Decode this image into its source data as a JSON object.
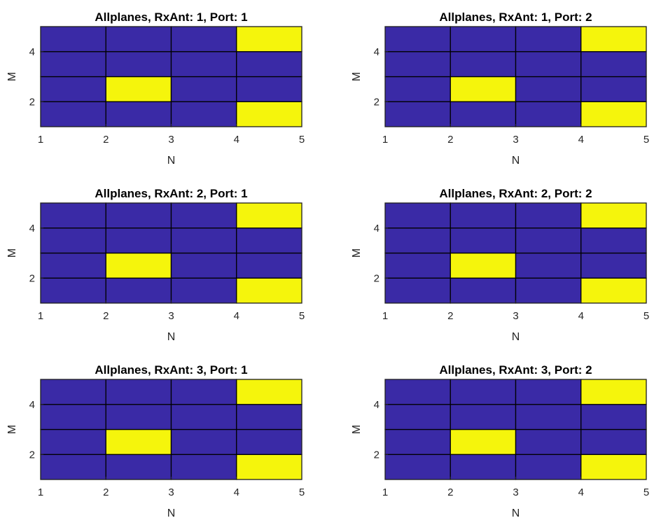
{
  "colors": {
    "low": "#3a2aa6",
    "high": "#f5f50c",
    "grid": "#000000",
    "axis": "#262626"
  },
  "chart_data": [
    {
      "type": "heatmap",
      "title": "Allplanes, RxAnt: 1, Port: 1",
      "xlabel": "N",
      "ylabel": "M",
      "xlim": [
        1,
        5
      ],
      "ylim": [
        1,
        5
      ],
      "xticks": [
        "1",
        "2",
        "3",
        "4",
        "5"
      ],
      "yticks": [
        "2",
        "4"
      ],
      "cells_note": "rows listed from M=1-2 (bottom) to M=4-5 (top); columns N=1-2 .. 4-5",
      "cells": [
        [
          0,
          0,
          0,
          1
        ],
        [
          0,
          1,
          0,
          0
        ],
        [
          0,
          0,
          0,
          0
        ],
        [
          0,
          0,
          0,
          1
        ]
      ]
    },
    {
      "type": "heatmap",
      "title": "Allplanes, RxAnt: 1, Port: 2",
      "xlabel": "N",
      "ylabel": "M",
      "xlim": [
        1,
        5
      ],
      "ylim": [
        1,
        5
      ],
      "xticks": [
        "1",
        "2",
        "3",
        "4",
        "5"
      ],
      "yticks": [
        "2",
        "4"
      ],
      "cells": [
        [
          0,
          0,
          0,
          1
        ],
        [
          0,
          1,
          0,
          0
        ],
        [
          0,
          0,
          0,
          0
        ],
        [
          0,
          0,
          0,
          1
        ]
      ]
    },
    {
      "type": "heatmap",
      "title": "Allplanes, RxAnt: 2, Port: 1",
      "xlabel": "N",
      "ylabel": "M",
      "xlim": [
        1,
        5
      ],
      "ylim": [
        1,
        5
      ],
      "xticks": [
        "1",
        "2",
        "3",
        "4",
        "5"
      ],
      "yticks": [
        "2",
        "4"
      ],
      "cells": [
        [
          0,
          0,
          0,
          1
        ],
        [
          0,
          1,
          0,
          0
        ],
        [
          0,
          0,
          0,
          0
        ],
        [
          0,
          0,
          0,
          1
        ]
      ]
    },
    {
      "type": "heatmap",
      "title": "Allplanes, RxAnt: 2, Port: 2",
      "xlabel": "N",
      "ylabel": "M",
      "xlim": [
        1,
        5
      ],
      "ylim": [
        1,
        5
      ],
      "xticks": [
        "1",
        "2",
        "3",
        "4",
        "5"
      ],
      "yticks": [
        "2",
        "4"
      ],
      "cells": [
        [
          0,
          0,
          0,
          1
        ],
        [
          0,
          1,
          0,
          0
        ],
        [
          0,
          0,
          0,
          0
        ],
        [
          0,
          0,
          0,
          1
        ]
      ]
    },
    {
      "type": "heatmap",
      "title": "Allplanes, RxAnt: 3, Port: 1",
      "xlabel": "N",
      "ylabel": "M",
      "xlim": [
        1,
        5
      ],
      "ylim": [
        1,
        5
      ],
      "xticks": [
        "1",
        "2",
        "3",
        "4",
        "5"
      ],
      "yticks": [
        "2",
        "4"
      ],
      "cells": [
        [
          0,
          0,
          0,
          1
        ],
        [
          0,
          1,
          0,
          0
        ],
        [
          0,
          0,
          0,
          0
        ],
        [
          0,
          0,
          0,
          1
        ]
      ]
    },
    {
      "type": "heatmap",
      "title": "Allplanes, RxAnt: 3, Port: 2",
      "xlabel": "N",
      "ylabel": "M",
      "xlim": [
        1,
        5
      ],
      "ylim": [
        1,
        5
      ],
      "xticks": [
        "1",
        "2",
        "3",
        "4",
        "5"
      ],
      "yticks": [
        "2",
        "4"
      ],
      "cells": [
        [
          0,
          0,
          0,
          1
        ],
        [
          0,
          1,
          0,
          0
        ],
        [
          0,
          0,
          0,
          0
        ],
        [
          0,
          0,
          0,
          1
        ]
      ]
    }
  ]
}
